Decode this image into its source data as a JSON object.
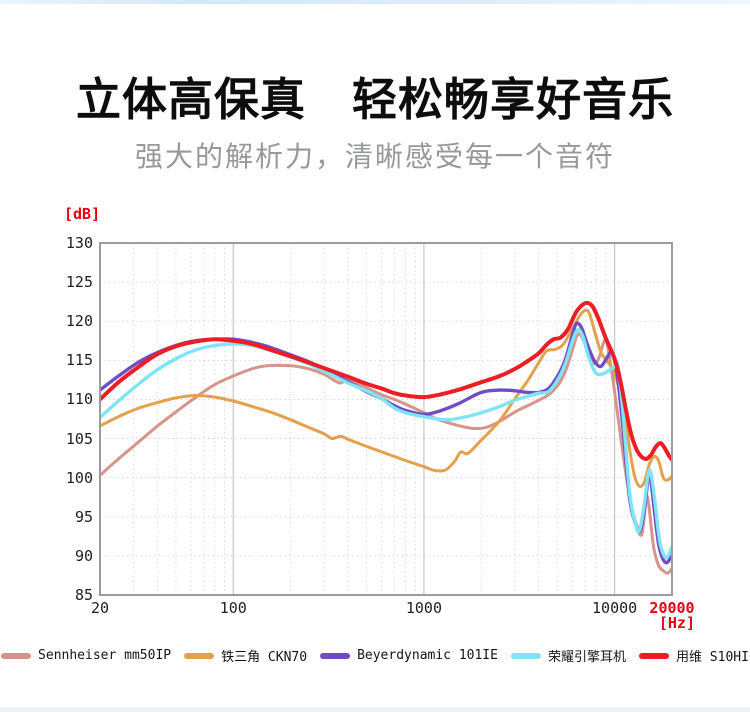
{
  "page": {
    "title": "立体高保真　轻松畅享好音乐",
    "subtitle": "强大的解析力，清晰感受每一个音符"
  },
  "chart_data": {
    "type": "line",
    "title": "",
    "ylabel": "[dB]",
    "xlabel": "[Hz]",
    "x_scale": "log",
    "xlim": [
      20,
      20000
    ],
    "ylim": [
      85,
      130
    ],
    "grid": "dotted minor lines, solid lines at 100/1000/10000, gray border",
    "legend_position": "bottom",
    "accent_color": "#e60012",
    "yticks": [
      130,
      125,
      120,
      115,
      110,
      105,
      100,
      95,
      90,
      85
    ],
    "xticks": [
      {
        "v": 20,
        "label": "20",
        "accent": false
      },
      {
        "v": 100,
        "label": "100",
        "accent": false
      },
      {
        "v": 1000,
        "label": "1000",
        "accent": false
      },
      {
        "v": 10000,
        "label": "10000",
        "accent": false
      },
      {
        "v": 20000,
        "label": "20000",
        "accent": true
      }
    ],
    "series": [
      {
        "name": "sennheiser-mm50ip",
        "label": "Sennheiser mm50IP",
        "color": "#d6948a",
        "width": 3,
        "points": [
          [
            20,
            100.3
          ],
          [
            25,
            102.4
          ],
          [
            32,
            104.6
          ],
          [
            40,
            106.6
          ],
          [
            50,
            108.4
          ],
          [
            63,
            110.2
          ],
          [
            80,
            111.9
          ],
          [
            100,
            113.0
          ],
          [
            125,
            113.9
          ],
          [
            150,
            114.3
          ],
          [
            200,
            114.3
          ],
          [
            250,
            113.9
          ],
          [
            300,
            113.2
          ],
          [
            330,
            112.6
          ],
          [
            365,
            112.1
          ],
          [
            395,
            112.5
          ],
          [
            440,
            112.1
          ],
          [
            500,
            111.5
          ],
          [
            600,
            110.6
          ],
          [
            700,
            110.0
          ],
          [
            800,
            109.4
          ],
          [
            1000,
            108.3
          ],
          [
            1200,
            107.4
          ],
          [
            1500,
            106.7
          ],
          [
            1800,
            106.3
          ],
          [
            2100,
            106.4
          ],
          [
            2500,
            107.2
          ],
          [
            3000,
            108.4
          ],
          [
            3500,
            109.2
          ],
          [
            4000,
            109.9
          ],
          [
            4500,
            110.6
          ],
          [
            5000,
            111.7
          ],
          [
            5500,
            113.5
          ],
          [
            6000,
            116.3
          ],
          [
            6400,
            118.3
          ],
          [
            6800,
            117.8
          ],
          [
            7300,
            115.8
          ],
          [
            7800,
            114.6
          ],
          [
            8300,
            115.4
          ],
          [
            8800,
            117.4
          ],
          [
            9100,
            117.4
          ],
          [
            9600,
            114.0
          ],
          [
            10000,
            111.0
          ],
          [
            11000,
            103.5
          ],
          [
            12000,
            97.5
          ],
          [
            13000,
            94.0
          ],
          [
            13900,
            92.8
          ],
          [
            14700,
            97.5
          ],
          [
            15200,
            96.0
          ],
          [
            16000,
            91.2
          ],
          [
            17000,
            88.8
          ],
          [
            18000,
            88.1
          ],
          [
            19000,
            87.8
          ],
          [
            20000,
            88.4
          ]
        ]
      },
      {
        "name": "audio-technica-ckn70",
        "label": "铁三角 CKN70",
        "color": "#e3a14b",
        "width": 3,
        "points": [
          [
            20,
            106.6
          ],
          [
            25,
            107.8
          ],
          [
            32,
            108.9
          ],
          [
            40,
            109.6
          ],
          [
            50,
            110.2
          ],
          [
            63,
            110.5
          ],
          [
            80,
            110.3
          ],
          [
            100,
            109.8
          ],
          [
            130,
            109.0
          ],
          [
            160,
            108.3
          ],
          [
            200,
            107.4
          ],
          [
            250,
            106.4
          ],
          [
            300,
            105.6
          ],
          [
            330,
            105.0
          ],
          [
            365,
            105.3
          ],
          [
            400,
            104.9
          ],
          [
            500,
            104.0
          ],
          [
            600,
            103.3
          ],
          [
            700,
            102.7
          ],
          [
            800,
            102.2
          ],
          [
            1000,
            101.4
          ],
          [
            1150,
            100.9
          ],
          [
            1300,
            101.0
          ],
          [
            1450,
            102.1
          ],
          [
            1560,
            103.3
          ],
          [
            1700,
            103.1
          ],
          [
            2000,
            104.8
          ],
          [
            2500,
            107.3
          ],
          [
            3000,
            110.1
          ],
          [
            3500,
            112.4
          ],
          [
            4000,
            114.7
          ],
          [
            4400,
            116.2
          ],
          [
            4900,
            116.4
          ],
          [
            5400,
            117.1
          ],
          [
            6000,
            119.0
          ],
          [
            6700,
            121.0
          ],
          [
            7300,
            121.2
          ],
          [
            7900,
            118.5
          ],
          [
            8500,
            116.0
          ],
          [
            9200,
            114.8
          ],
          [
            10000,
            113.4
          ],
          [
            10800,
            110.3
          ],
          [
            11500,
            106.8
          ],
          [
            12100,
            103.0
          ],
          [
            12800,
            100.0
          ],
          [
            13500,
            98.9
          ],
          [
            14300,
            99.4
          ],
          [
            15200,
            101.7
          ],
          [
            16100,
            102.7
          ],
          [
            17000,
            102.2
          ],
          [
            18000,
            100.0
          ],
          [
            19000,
            99.7
          ],
          [
            20000,
            100.2
          ]
        ]
      },
      {
        "name": "beyerdynamic-101ie",
        "label": "Beyerdynamic 101IE",
        "color": "#6f4dc6",
        "width": 3.4,
        "points": [
          [
            20,
            111.2
          ],
          [
            25,
            113.0
          ],
          [
            32,
            114.8
          ],
          [
            40,
            116.0
          ],
          [
            50,
            116.9
          ],
          [
            63,
            117.5
          ],
          [
            80,
            117.7
          ],
          [
            100,
            117.7
          ],
          [
            125,
            117.3
          ],
          [
            150,
            116.8
          ],
          [
            200,
            115.7
          ],
          [
            250,
            114.8
          ],
          [
            300,
            113.8
          ],
          [
            350,
            113.0
          ],
          [
            400,
            112.3
          ],
          [
            500,
            111.0
          ],
          [
            600,
            110.1
          ],
          [
            700,
            109.2
          ],
          [
            800,
            108.6
          ],
          [
            1000,
            108.1
          ],
          [
            1200,
            108.5
          ],
          [
            1500,
            109.4
          ],
          [
            2000,
            110.9
          ],
          [
            2500,
            111.2
          ],
          [
            3000,
            111.1
          ],
          [
            3500,
            110.9
          ],
          [
            4000,
            110.9
          ],
          [
            4500,
            111.4
          ],
          [
            5000,
            112.9
          ],
          [
            5500,
            115.0
          ],
          [
            6000,
            118.2
          ],
          [
            6300,
            119.7
          ],
          [
            6700,
            119.2
          ],
          [
            7200,
            117.0
          ],
          [
            7800,
            115.0
          ],
          [
            8400,
            114.2
          ],
          [
            9000,
            115.1
          ],
          [
            9500,
            116.0
          ],
          [
            9900,
            115.4
          ],
          [
            10400,
            112.5
          ],
          [
            11000,
            107.0
          ],
          [
            12000,
            97.3
          ],
          [
            13000,
            93.8
          ],
          [
            13600,
            93.2
          ],
          [
            14300,
            95.8
          ],
          [
            15000,
            99.9
          ],
          [
            15400,
            100.1
          ],
          [
            16000,
            96.8
          ],
          [
            17000,
            91.6
          ],
          [
            18000,
            89.5
          ],
          [
            19000,
            89.2
          ],
          [
            20000,
            90.3
          ]
        ]
      },
      {
        "name": "honor-engine-earphones",
        "label": "荣耀引擎耳机",
        "color": "#7fe5f6",
        "width": 3.4,
        "points": [
          [
            20,
            107.7
          ],
          [
            25,
            109.8
          ],
          [
            32,
            112.0
          ],
          [
            40,
            113.8
          ],
          [
            50,
            115.2
          ],
          [
            63,
            116.3
          ],
          [
            80,
            116.9
          ],
          [
            100,
            117.1
          ],
          [
            125,
            116.9
          ],
          [
            150,
            116.4
          ],
          [
            200,
            115.4
          ],
          [
            250,
            114.5
          ],
          [
            300,
            113.6
          ],
          [
            350,
            112.8
          ],
          [
            400,
            112.1
          ],
          [
            500,
            111.1
          ],
          [
            600,
            110.1
          ],
          [
            700,
            108.9
          ],
          [
            800,
            108.3
          ],
          [
            1000,
            107.8
          ],
          [
            1300,
            107.4
          ],
          [
            1600,
            107.7
          ],
          [
            2000,
            108.3
          ],
          [
            2500,
            109.1
          ],
          [
            3000,
            109.9
          ],
          [
            3500,
            110.4
          ],
          [
            4000,
            110.8
          ],
          [
            4500,
            111.0
          ],
          [
            5000,
            112.4
          ],
          [
            5500,
            114.5
          ],
          [
            6000,
            117.4
          ],
          [
            6400,
            118.9
          ],
          [
            6800,
            118.1
          ],
          [
            7300,
            115.5
          ],
          [
            7900,
            113.5
          ],
          [
            8500,
            113.2
          ],
          [
            9200,
            113.6
          ],
          [
            10000,
            114.2
          ],
          [
            10400,
            114.3
          ],
          [
            11000,
            109.0
          ],
          [
            12000,
            98.0
          ],
          [
            13000,
            93.7
          ],
          [
            13500,
            93.3
          ],
          [
            14200,
            96.0
          ],
          [
            15000,
            100.4
          ],
          [
            15500,
            100.6
          ],
          [
            16200,
            97.3
          ],
          [
            17200,
            92.0
          ],
          [
            18200,
            90.0
          ],
          [
            19000,
            89.9
          ],
          [
            20000,
            91.2
          ]
        ]
      },
      {
        "name": "yongwei-s10hi",
        "label": "用维 S10HI",
        "color": "#ee1c25",
        "width": 4,
        "points": [
          [
            20,
            110.0
          ],
          [
            25,
            112.2
          ],
          [
            32,
            114.2
          ],
          [
            40,
            115.8
          ],
          [
            50,
            116.8
          ],
          [
            63,
            117.4
          ],
          [
            80,
            117.7
          ],
          [
            100,
            117.5
          ],
          [
            125,
            117.1
          ],
          [
            150,
            116.5
          ],
          [
            200,
            115.5
          ],
          [
            250,
            114.7
          ],
          [
            300,
            114.0
          ],
          [
            350,
            113.4
          ],
          [
            400,
            112.9
          ],
          [
            500,
            112.0
          ],
          [
            600,
            111.4
          ],
          [
            700,
            110.8
          ],
          [
            800,
            110.5
          ],
          [
            1000,
            110.3
          ],
          [
            1200,
            110.6
          ],
          [
            1500,
            111.2
          ],
          [
            2000,
            112.2
          ],
          [
            2500,
            113.0
          ],
          [
            3000,
            113.9
          ],
          [
            3500,
            114.9
          ],
          [
            4000,
            115.9
          ],
          [
            4400,
            117.0
          ],
          [
            4800,
            117.7
          ],
          [
            5200,
            117.9
          ],
          [
            5700,
            119.0
          ],
          [
            6300,
            121.2
          ],
          [
            7000,
            122.3
          ],
          [
            7600,
            122.0
          ],
          [
            8200,
            120.4
          ],
          [
            9000,
            117.8
          ],
          [
            10000,
            115.2
          ],
          [
            10700,
            112.5
          ],
          [
            11500,
            108.5
          ],
          [
            12300,
            105.3
          ],
          [
            13300,
            103.2
          ],
          [
            14500,
            102.4
          ],
          [
            15500,
            102.9
          ],
          [
            16500,
            104.0
          ],
          [
            17500,
            104.4
          ],
          [
            18500,
            103.6
          ],
          [
            19300,
            102.8
          ],
          [
            20000,
            102.3
          ]
        ]
      }
    ]
  }
}
